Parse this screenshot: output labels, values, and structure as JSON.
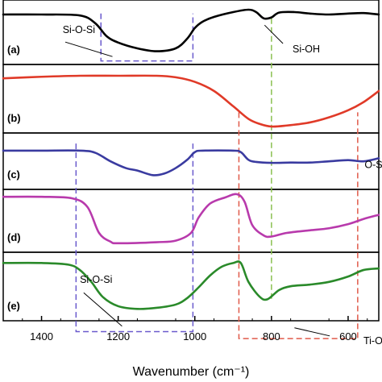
{
  "chart_data": {
    "type": "line",
    "title": "",
    "xlabel": "Wavenumber (cm⁻¹)",
    "ylabel": "",
    "x_reversed": true,
    "xlim": [
      1500,
      520
    ],
    "xticks": [
      1400,
      1200,
      1000,
      800,
      600
    ],
    "xtick_labels": [
      "1400",
      "1200",
      "1000",
      "800",
      "600"
    ],
    "grid": false,
    "panels": [
      {
        "label": "(a)",
        "color": "#000000",
        "points": [
          [
            1500,
            0.1
          ],
          [
            1400,
            0.1
          ],
          [
            1300,
            0.12
          ],
          [
            1260,
            0.28
          ],
          [
            1230,
            0.55
          ],
          [
            1200,
            0.68
          ],
          [
            1150,
            0.8
          ],
          [
            1100,
            0.86
          ],
          [
            1050,
            0.8
          ],
          [
            1020,
            0.6
          ],
          [
            1000,
            0.38
          ],
          [
            980,
            0.25
          ],
          [
            950,
            0.15
          ],
          [
            900,
            0.05
          ],
          [
            860,
            0.0
          ],
          [
            840,
            0.05
          ],
          [
            820,
            0.18
          ],
          [
            800,
            0.16
          ],
          [
            780,
            0.06
          ],
          [
            740,
            0.05
          ],
          [
            700,
            0.08
          ],
          [
            650,
            0.1
          ],
          [
            600,
            0.08
          ],
          [
            560,
            0.07
          ],
          [
            520,
            0.1
          ]
        ]
      },
      {
        "label": "(b)",
        "color": "#e03a28",
        "points": [
          [
            1500,
            0.05
          ],
          [
            1400,
            0.02
          ],
          [
            1300,
            0.0
          ],
          [
            1200,
            0.0
          ],
          [
            1100,
            0.0
          ],
          [
            1050,
            0.03
          ],
          [
            1000,
            0.12
          ],
          [
            950,
            0.3
          ],
          [
            900,
            0.6
          ],
          [
            860,
            0.85
          ],
          [
            830,
            0.95
          ],
          [
            800,
            1.0
          ],
          [
            760,
            0.98
          ],
          [
            700,
            0.92
          ],
          [
            650,
            0.82
          ],
          [
            600,
            0.68
          ],
          [
            560,
            0.52
          ],
          [
            520,
            0.3
          ]
        ]
      },
      {
        "label": "(c)",
        "color": "#3a3ba0",
        "points": [
          [
            1500,
            0.05
          ],
          [
            1400,
            0.05
          ],
          [
            1300,
            0.05
          ],
          [
            1260,
            0.12
          ],
          [
            1220,
            0.4
          ],
          [
            1180,
            0.62
          ],
          [
            1150,
            0.7
          ],
          [
            1110,
            0.85
          ],
          [
            1080,
            0.8
          ],
          [
            1050,
            0.62
          ],
          [
            1020,
            0.35
          ],
          [
            1000,
            0.1
          ],
          [
            980,
            0.05
          ],
          [
            900,
            0.05
          ],
          [
            880,
            0.1
          ],
          [
            860,
            0.35
          ],
          [
            840,
            0.42
          ],
          [
            800,
            0.45
          ],
          [
            750,
            0.44
          ],
          [
            700,
            0.44
          ],
          [
            650,
            0.4
          ],
          [
            600,
            0.36
          ],
          [
            560,
            0.4
          ],
          [
            520,
            0.3
          ]
        ]
      },
      {
        "label": "(d)",
        "color": "#b83aac",
        "points": [
          [
            1500,
            0.05
          ],
          [
            1400,
            0.05
          ],
          [
            1320,
            0.08
          ],
          [
            1280,
            0.25
          ],
          [
            1250,
            0.75
          ],
          [
            1220,
            0.92
          ],
          [
            1200,
            0.95
          ],
          [
            1100,
            0.93
          ],
          [
            1050,
            0.9
          ],
          [
            1010,
            0.75
          ],
          [
            990,
            0.45
          ],
          [
            960,
            0.18
          ],
          [
            920,
            0.06
          ],
          [
            890,
            0.0
          ],
          [
            870,
            0.15
          ],
          [
            850,
            0.6
          ],
          [
            820,
            0.8
          ],
          [
            800,
            0.82
          ],
          [
            760,
            0.75
          ],
          [
            700,
            0.7
          ],
          [
            650,
            0.66
          ],
          [
            600,
            0.58
          ],
          [
            560,
            0.48
          ],
          [
            520,
            0.4
          ]
        ]
      },
      {
        "label": "(e)",
        "color": "#2a8a2a",
        "points": [
          [
            1500,
            0.05
          ],
          [
            1400,
            0.05
          ],
          [
            1330,
            0.08
          ],
          [
            1300,
            0.18
          ],
          [
            1270,
            0.4
          ],
          [
            1240,
            0.68
          ],
          [
            1200,
            0.85
          ],
          [
            1150,
            0.9
          ],
          [
            1100,
            0.88
          ],
          [
            1050,
            0.82
          ],
          [
            1020,
            0.7
          ],
          [
            990,
            0.5
          ],
          [
            960,
            0.28
          ],
          [
            930,
            0.12
          ],
          [
            900,
            0.05
          ],
          [
            880,
            0.05
          ],
          [
            860,
            0.4
          ],
          [
            830,
            0.68
          ],
          [
            810,
            0.72
          ],
          [
            780,
            0.55
          ],
          [
            750,
            0.48
          ],
          [
            700,
            0.45
          ],
          [
            650,
            0.4
          ],
          [
            600,
            0.3
          ],
          [
            560,
            0.18
          ],
          [
            520,
            0.15
          ]
        ]
      }
    ],
    "annotations": [
      {
        "text": "Si-O-Si",
        "panel": 0,
        "x": 1345,
        "y": 0.48,
        "pointer": [
          1215,
          0.97
        ],
        "label_end": [
          1338,
          0.67
        ]
      },
      {
        "text": "Si-OH",
        "panel": 0,
        "x": 745,
        "y": 0.88,
        "pointer": [
          818,
          0.32
        ],
        "label_end": [
          770,
          0.7
        ]
      },
      {
        "text": "O-S",
        "panel": 2,
        "x": 557,
        "y": 0.62
      },
      {
        "text": "Si-O-Si",
        "panel": 4,
        "x": 1300,
        "y": 0.42,
        "pointer": [
          1190,
          1.22
        ],
        "label_end": [
          1290,
          0.6
        ]
      },
      {
        "text": "Ti-O",
        "panel": 4,
        "x": 560,
        "y": 1.55,
        "pointer": [
          740,
          1.25
        ],
        "label_end": [
          648,
          1.4
        ]
      }
    ],
    "marker_lines": [
      {
        "color": "#6a5acd",
        "style": "dashed",
        "x1": 1245,
        "x2": 1005,
        "from": [
          0,
          0.08
        ],
        "to": [
          0,
          1.06
        ]
      },
      {
        "color": "#6a5acd",
        "style": "dashed",
        "x1": 1310,
        "x2": 1005,
        "from": [
          2,
          -0.18
        ],
        "to": [
          4,
          1.32
        ]
      },
      {
        "color": "#8ac050",
        "style": "dashed",
        "x": 800,
        "from": [
          0,
          0.18
        ],
        "to": [
          4,
          0.72
        ]
      },
      {
        "color": "#e05a4a",
        "style": "dashed",
        "x1": 885,
        "x2": 575,
        "from": [
          1,
          0.72
        ],
        "to": [
          4,
          1.45
        ]
      }
    ]
  }
}
